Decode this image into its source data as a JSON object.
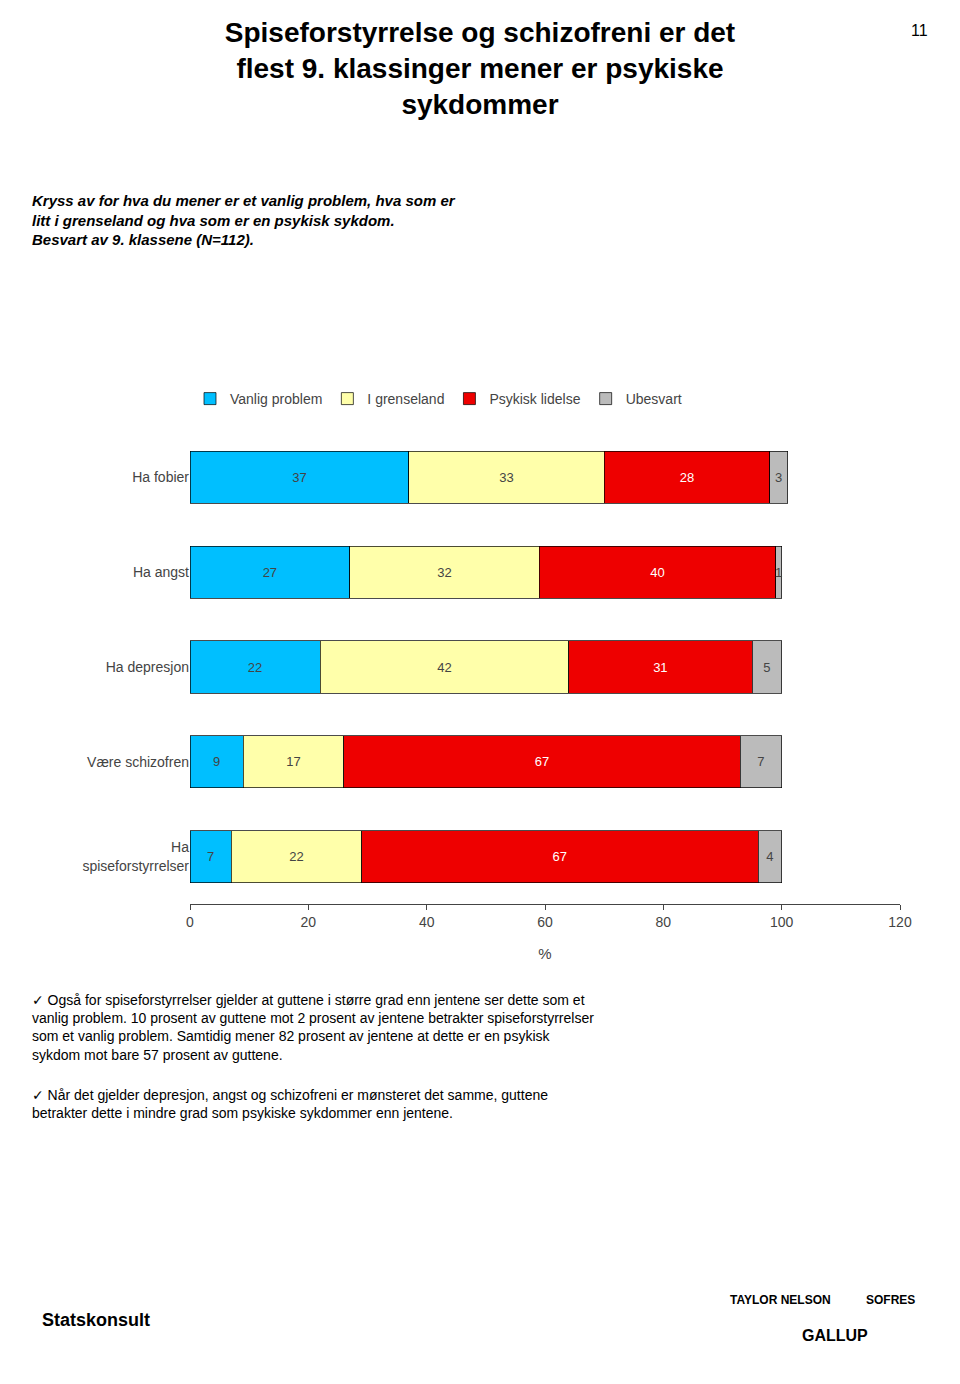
{
  "chart_data": {
    "type": "bar",
    "orientation": "horizontal",
    "stacked": true,
    "title": "Spiseforstyrrelse og schizofreni er det\nflest 9. klassinger mener er psykiske\nsykdommer",
    "subtitle": "Kryss av for hva du mener er et vanlig problem, hva som er\nlitt i grenseland og hva som er en psykisk sykdom.\nBesvart av 9. klassene (N=112).",
    "categories": [
      "Ha fobier",
      "Ha angst",
      "Ha depresjon",
      "Være schizofren",
      "Ha\nspiseforstyrrelser"
    ],
    "series": [
      {
        "name": "Vanlig problem",
        "color": "#00BFFF",
        "values": [
          37,
          27,
          22,
          9,
          7
        ]
      },
      {
        "name": "I grenseland",
        "color": "#FFFFAA",
        "values": [
          33,
          32,
          42,
          17,
          22
        ]
      },
      {
        "name": "Psykisk lidelse",
        "color": "#EE0000",
        "values": [
          28,
          40,
          31,
          67,
          67
        ]
      },
      {
        "name": "Ubesvart",
        "color": "#BBBBBB",
        "values": [
          3,
          1,
          5,
          7,
          4
        ]
      }
    ],
    "xlabel": "%",
    "xlim": [
      0,
      120
    ],
    "xticks": [
      0,
      20,
      40,
      60,
      80,
      100,
      120
    ],
    "data_labels": true,
    "grid": false,
    "legend": "top",
    "annotations": [
      "11",
      "✓ Også for spiseforstyrrelser gjelder at guttene i større grad enn jentene ser dette som et\nvanlig problem. 10 prosent av guttene mot 2 prosent av jentene betrakter spiseforstyrrelser\nsom et vanlig problem. Samtidig mener 82 prosent av jentene at dette er en psykisk\nsykdom mot bare 57 prosent av guttene.",
      "✓ Når det gjelder depresjon, angst og schizofreni er mønsteret det samme, guttene\nbetrakter dette i mindre grad som psykiske sykdommer enn jentene.",
      "Statskonsult",
      "TAYLOR NELSON",
      "SOFRES",
      "GALLUP"
    ]
  }
}
